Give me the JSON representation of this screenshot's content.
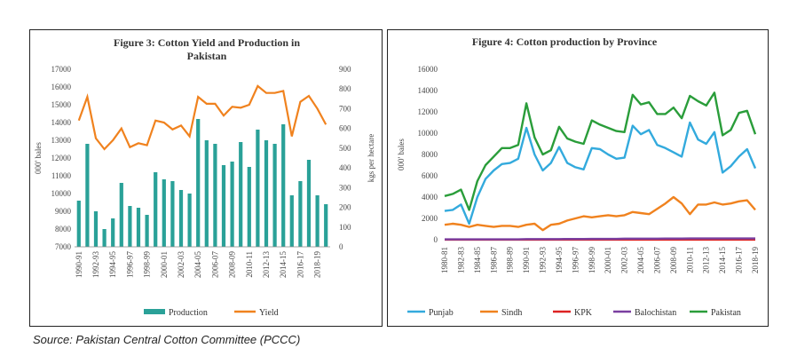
{
  "source_note": "Source: Pakistan Central Cotton Committee (PCCC)",
  "chart_data": [
    {
      "type": "bar+line",
      "title_line1": "Figure 3: Cotton Yield and Production in",
      "title_line2": "Pakistan",
      "ylabel_left": "000' bales",
      "ylabel_right": "kgs per hectare",
      "ylim_left": [
        7000,
        17000
      ],
      "yticks_left": [
        7000,
        8000,
        9000,
        10000,
        11000,
        12000,
        13000,
        14000,
        15000,
        16000,
        17000
      ],
      "ylim_right": [
        0,
        900
      ],
      "yticks_right": [
        0,
        100,
        200,
        300,
        400,
        500,
        600,
        700,
        800,
        900
      ],
      "categories": [
        "1990-91",
        "1991-92",
        "1992-93",
        "1993-94",
        "1994-95",
        "1995-96",
        "1996-97",
        "1997-98",
        "1998-99",
        "1999-00",
        "2000-01",
        "2001-02",
        "2002-03",
        "2003-04",
        "2004-05",
        "2005-06",
        "2006-07",
        "2007-08",
        "2008-09",
        "2009-10",
        "2010-11",
        "2011-12",
        "2012-13",
        "2013-14",
        "2014-15",
        "2015-16",
        "2016-17",
        "2017-18",
        "2018-19",
        "2019-20"
      ],
      "tick_labels": [
        "1990-91",
        "1992-93",
        "1994-95",
        "1996-97",
        "1998-99",
        "2000-01",
        "2002-03",
        "2004-05",
        "2006-07",
        "2008-09",
        "2010-11",
        "2012-13",
        "2014-15",
        "2016-17",
        "2018-19"
      ],
      "series": [
        {
          "name": "Production",
          "kind": "bar",
          "color": "#2aa198",
          "values": [
            9600,
            12800,
            9000,
            8000,
            8600,
            10600,
            9300,
            9200,
            8800,
            11200,
            10800,
            10700,
            10200,
            10000,
            14200,
            13000,
            12800,
            11600,
            11800,
            12900,
            11500,
            13600,
            13000,
            12800,
            13900,
            9900,
            10700,
            11900,
            9900,
            9400
          ]
        },
        {
          "name": "Yield",
          "kind": "line",
          "color": "#f0821e",
          "values": [
            640,
            760,
            550,
            495,
            540,
            600,
            505,
            525,
            515,
            640,
            630,
            595,
            615,
            560,
            760,
            725,
            725,
            665,
            710,
            705,
            720,
            815,
            780,
            780,
            790,
            560,
            735,
            765,
            700,
            620
          ]
        }
      ]
    },
    {
      "type": "line",
      "title": "Figure 4: Cotton production by Province",
      "ylabel": "000' bales",
      "ylim": [
        0,
        16000
      ],
      "yticks": [
        0,
        2000,
        4000,
        6000,
        8000,
        10000,
        12000,
        14000,
        16000
      ],
      "categories": [
        "1980-81",
        "1981-82",
        "1982-83",
        "1983-84",
        "1984-85",
        "1985-86",
        "1986-87",
        "1987-88",
        "1988-89",
        "1989-90",
        "1990-91",
        "1991-92",
        "1992-93",
        "1993-94",
        "1994-95",
        "1995-96",
        "1996-97",
        "1997-98",
        "1998-99",
        "1999-00",
        "2000-01",
        "2001-02",
        "2002-03",
        "2003-04",
        "2004-05",
        "2005-06",
        "2006-07",
        "2007-08",
        "2008-09",
        "2009-10",
        "2010-11",
        "2011-12",
        "2012-13",
        "2013-14",
        "2014-15",
        "2015-16",
        "2016-17",
        "2017-18",
        "2018-19"
      ],
      "tick_labels": [
        "1980-81",
        "1982-83",
        "1984-85",
        "1986-87",
        "1988-89",
        "1990-91",
        "1992-93",
        "1994-95",
        "1996-97",
        "1998-99",
        "2000-01",
        "2002-03",
        "2004-05",
        "2006-07",
        "2008-09",
        "2010-11",
        "2012-13",
        "2014-15",
        "2016-17",
        "2018-19"
      ],
      "series": [
        {
          "name": "Punjab",
          "color": "#33aadd",
          "values": [
            2700,
            2800,
            3300,
            1500,
            4000,
            5700,
            6500,
            7100,
            7200,
            7600,
            10500,
            8000,
            6500,
            7200,
            8700,
            7200,
            6800,
            6600,
            8600,
            8500,
            8000,
            7600,
            7700,
            10700,
            9900,
            10300,
            8900,
            8600,
            8200,
            7800,
            11000,
            9400,
            9000,
            10100,
            6300,
            6900,
            7800,
            8500,
            6700
          ]
        },
        {
          "name": "Sindh",
          "color": "#f0821e",
          "values": [
            1400,
            1500,
            1400,
            1200,
            1400,
            1300,
            1200,
            1300,
            1300,
            1200,
            1400,
            1500,
            900,
            1400,
            1500,
            1800,
            2000,
            2200,
            2100,
            2200,
            2300,
            2200,
            2300,
            2600,
            2500,
            2400,
            2900,
            3400,
            4000,
            3400,
            2400,
            3300,
            3300,
            3500,
            3300,
            3400,
            3600,
            3700,
            2800
          ]
        },
        {
          "name": "KPK",
          "color": "#dd2222",
          "values": [
            10,
            10,
            10,
            10,
            10,
            10,
            10,
            10,
            10,
            10,
            10,
            10,
            10,
            10,
            10,
            10,
            10,
            10,
            10,
            10,
            10,
            10,
            10,
            10,
            10,
            10,
            10,
            10,
            10,
            10,
            10,
            10,
            10,
            10,
            10,
            10,
            10,
            10,
            10
          ]
        },
        {
          "name": "Balochistan",
          "color": "#7a3fa0",
          "values": [
            40,
            40,
            40,
            40,
            40,
            40,
            40,
            40,
            40,
            40,
            60,
            60,
            60,
            60,
            60,
            70,
            70,
            70,
            80,
            80,
            80,
            80,
            100,
            100,
            100,
            100,
            100,
            110,
            110,
            110,
            120,
            120,
            120,
            120,
            120,
            120,
            120,
            120,
            120
          ]
        },
        {
          "name": "Pakistan",
          "color": "#2a9d3a",
          "values": [
            4100,
            4300,
            4700,
            2800,
            5500,
            7000,
            7800,
            8600,
            8600,
            8900,
            12800,
            9600,
            8000,
            8400,
            10600,
            9500,
            9200,
            9000,
            11200,
            10800,
            10500,
            10200,
            10100,
            13600,
            12700,
            12900,
            11800,
            11800,
            12400,
            11400,
            13500,
            13000,
            12600,
            13800,
            9800,
            10300,
            11900,
            12100,
            9900
          ]
        }
      ]
    }
  ]
}
